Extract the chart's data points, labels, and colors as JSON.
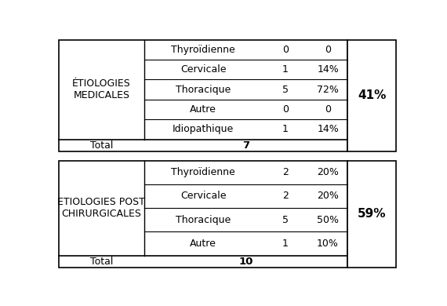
{
  "table1_header": "ÉTIOLOGIES\nMEDICALES",
  "table1_rows": [
    [
      "Thyroïdienne",
      "0",
      "0"
    ],
    [
      "Cervicale",
      "1",
      "14%"
    ],
    [
      "Thoracique",
      "5",
      "72%"
    ],
    [
      "Autre",
      "0",
      "0"
    ],
    [
      "Idiopathique",
      "1",
      "14%"
    ]
  ],
  "table1_total": "7",
  "table1_pct": "41%",
  "table2_header": "ETIOLOGIES POST\nCHIRURGICALES",
  "table2_rows": [
    [
      "Thyroïdienne",
      "2",
      "20%"
    ],
    [
      "Cervicale",
      "2",
      "20%"
    ],
    [
      "Thoracique",
      "5",
      "50%"
    ],
    [
      "Autre",
      "1",
      "10%"
    ]
  ],
  "table2_total": "10",
  "table2_pct": "59%",
  "bg_color": "#ffffff",
  "line_color": "#000000",
  "text_color": "#000000"
}
